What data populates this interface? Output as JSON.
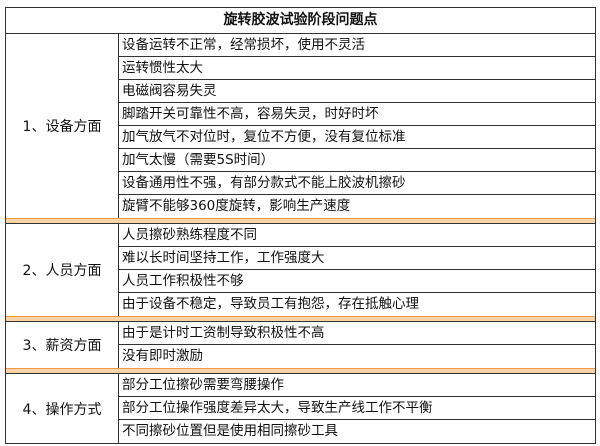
{
  "title": "旋转胶波试验阶段问题点",
  "groups": [
    {
      "category": "1、设备方面",
      "items": [
        "设备运转不正常，经常损坏，使用不灵活",
        "运转惯性太大",
        "电磁阀容易失灵",
        "脚踏开关可靠性不高，容易失灵，时好时坏",
        "加气放气不对位时，复位不方便，没有复位标准",
        "加气太慢（需要5S时间）",
        "设备通用性不强，有部分款式不能上胶波机擦砂",
        "旋臂不能够360度旋转，影响生产速度"
      ]
    },
    {
      "category": "2、人员方面",
      "items": [
        "人员擦砂熟练程度不同",
        "难以长时间坚持工作，工作强度大",
        "人员工作积极性不够",
        "由于设备不稳定，导致员工有抱怨，存在抵触心理"
      ]
    },
    {
      "category": "3、薪资方面",
      "items": [
        "由于是计时工资制导致积极性不高",
        "没有即时激励"
      ]
    },
    {
      "category": "4、操作方式",
      "items": [
        "部分工位擦砂需要弯腰操作",
        "部分工位操作强度差异太大，导致生产线工作不平衡",
        "不同擦砂位置但是使用相同擦砂工具"
      ]
    }
  ],
  "colors": {
    "separator": "#fbd3a6",
    "border": "#333333"
  }
}
